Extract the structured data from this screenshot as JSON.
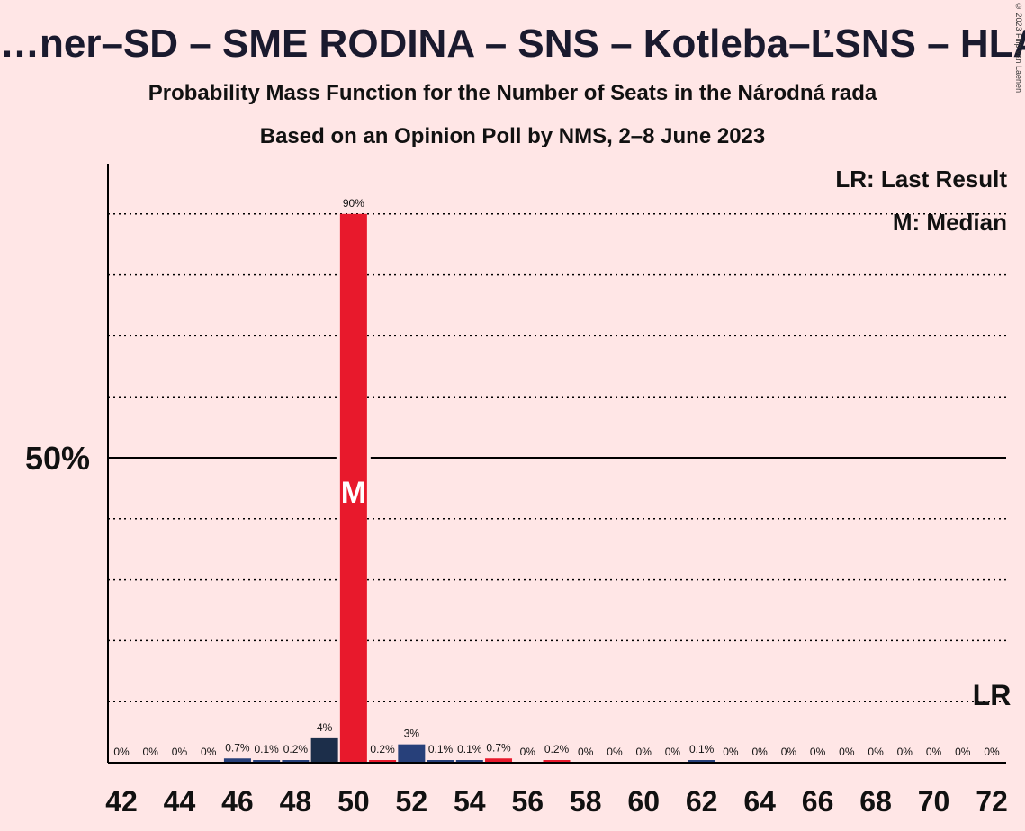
{
  "title": "…ner–SD – SME RODINA – SNS – Kotleba–ĽSNS – HLAS–…",
  "subtitle1": "Probability Mass Function for the Number of Seats in the Národná rada",
  "subtitle2": "Based on an Opinion Poll by NMS, 2–8 June 2023",
  "copyright": "© 2023 Filip van Laenen",
  "legend": {
    "last_result": "LR: Last Result",
    "median": "M: Median"
  },
  "colors": {
    "background": "#ffe6e6",
    "median_bar": "#e8192c",
    "dark_bar": "#1c2e4a",
    "blue_bar": "#27407a",
    "axis": "#000000"
  },
  "chart_data": {
    "type": "bar",
    "x": [
      42,
      43,
      44,
      45,
      46,
      47,
      48,
      49,
      50,
      51,
      52,
      53,
      54,
      55,
      56,
      57,
      58,
      59,
      60,
      61,
      62,
      63,
      64,
      65,
      66,
      67,
      68,
      69,
      70,
      71,
      72
    ],
    "values": [
      0,
      0,
      0,
      0,
      0.7,
      0.1,
      0.2,
      4,
      90,
      0.2,
      3,
      0.1,
      0.1,
      0.7,
      0,
      0.2,
      0,
      0,
      0,
      0,
      0.1,
      0,
      0,
      0,
      0,
      0,
      0,
      0,
      0,
      0,
      0
    ],
    "labels": [
      "0%",
      "0%",
      "0%",
      "0%",
      "0.7%",
      "0.1%",
      "0.2%",
      "4%",
      "90%",
      "0.2%",
      "3%",
      "0.1%",
      "0.1%",
      "0.7%",
      "0%",
      "0.2%",
      "0%",
      "0%",
      "0%",
      "0%",
      "0.1%",
      "0%",
      "0%",
      "0%",
      "0%",
      "0%",
      "0%",
      "0%",
      "0%",
      "0%",
      "0%"
    ],
    "bar_colors": [
      "",
      "",
      "",
      "",
      "#27407a",
      "#27407a",
      "#27407a",
      "#1c2e4a",
      "#e8192c",
      "#e8192c",
      "#27407a",
      "#27407a",
      "#27407a",
      "#e8192c",
      "#e8192c",
      "#e8192c",
      "",
      "",
      "",
      "",
      "#27407a",
      "",
      "",
      "",
      "",
      "",
      "",
      "",
      "",
      "",
      ""
    ],
    "x_tick_labels": [
      "42",
      "44",
      "46",
      "48",
      "50",
      "52",
      "54",
      "56",
      "58",
      "60",
      "62",
      "64",
      "66",
      "68",
      "70",
      "72"
    ],
    "y_tick_label": "50%",
    "ylim": [
      0,
      100
    ],
    "median_seat": 50,
    "median_marker": "M",
    "last_result_seat": 72,
    "last_result_marker": "LR",
    "gridlines": [
      10,
      20,
      30,
      40,
      60,
      70,
      80,
      90
    ],
    "major_line": 50
  }
}
